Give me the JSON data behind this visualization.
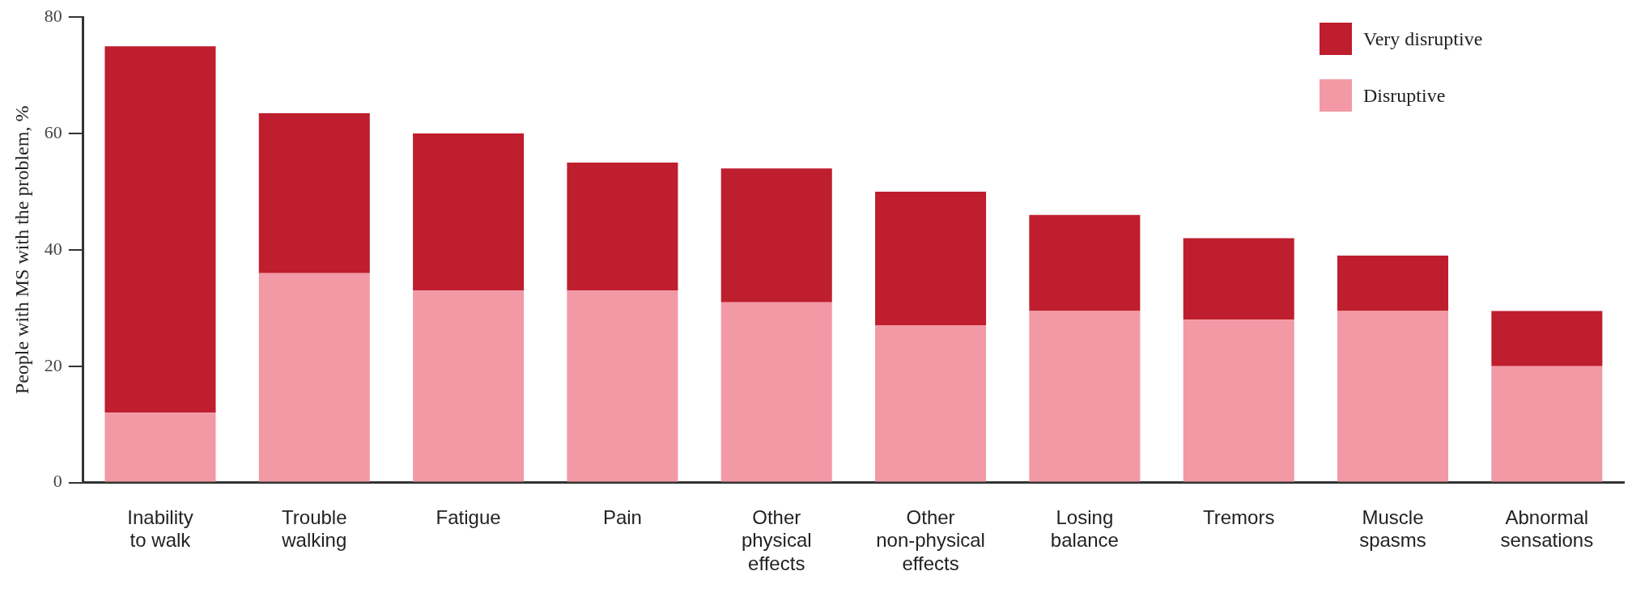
{
  "chart_data": {
    "type": "bar",
    "stacked": true,
    "ylabel": "People with MS with the problem, %",
    "categories": [
      "Inability to walk",
      "Trouble walking",
      "Fatigue",
      "Pain",
      "Other physical effects",
      "Other non-physical effects",
      "Losing balance",
      "Tremors",
      "Muscle spasms",
      "Abnormal sensations"
    ],
    "series": [
      {
        "name": "Disruptive",
        "color": "#f299a5",
        "values": [
          12,
          36,
          33,
          33,
          31,
          27,
          29.5,
          28,
          29.5,
          20
        ]
      },
      {
        "name": "Very disruptive",
        "color": "#be1e2d",
        "values": [
          63,
          27.5,
          27,
          22,
          23,
          23,
          16.5,
          14,
          9.5,
          9.5
        ]
      }
    ],
    "ylim": [
      0,
      80
    ],
    "yticks": [
      0,
      20,
      40,
      60,
      80
    ],
    "grid": false,
    "legend": "top right"
  }
}
